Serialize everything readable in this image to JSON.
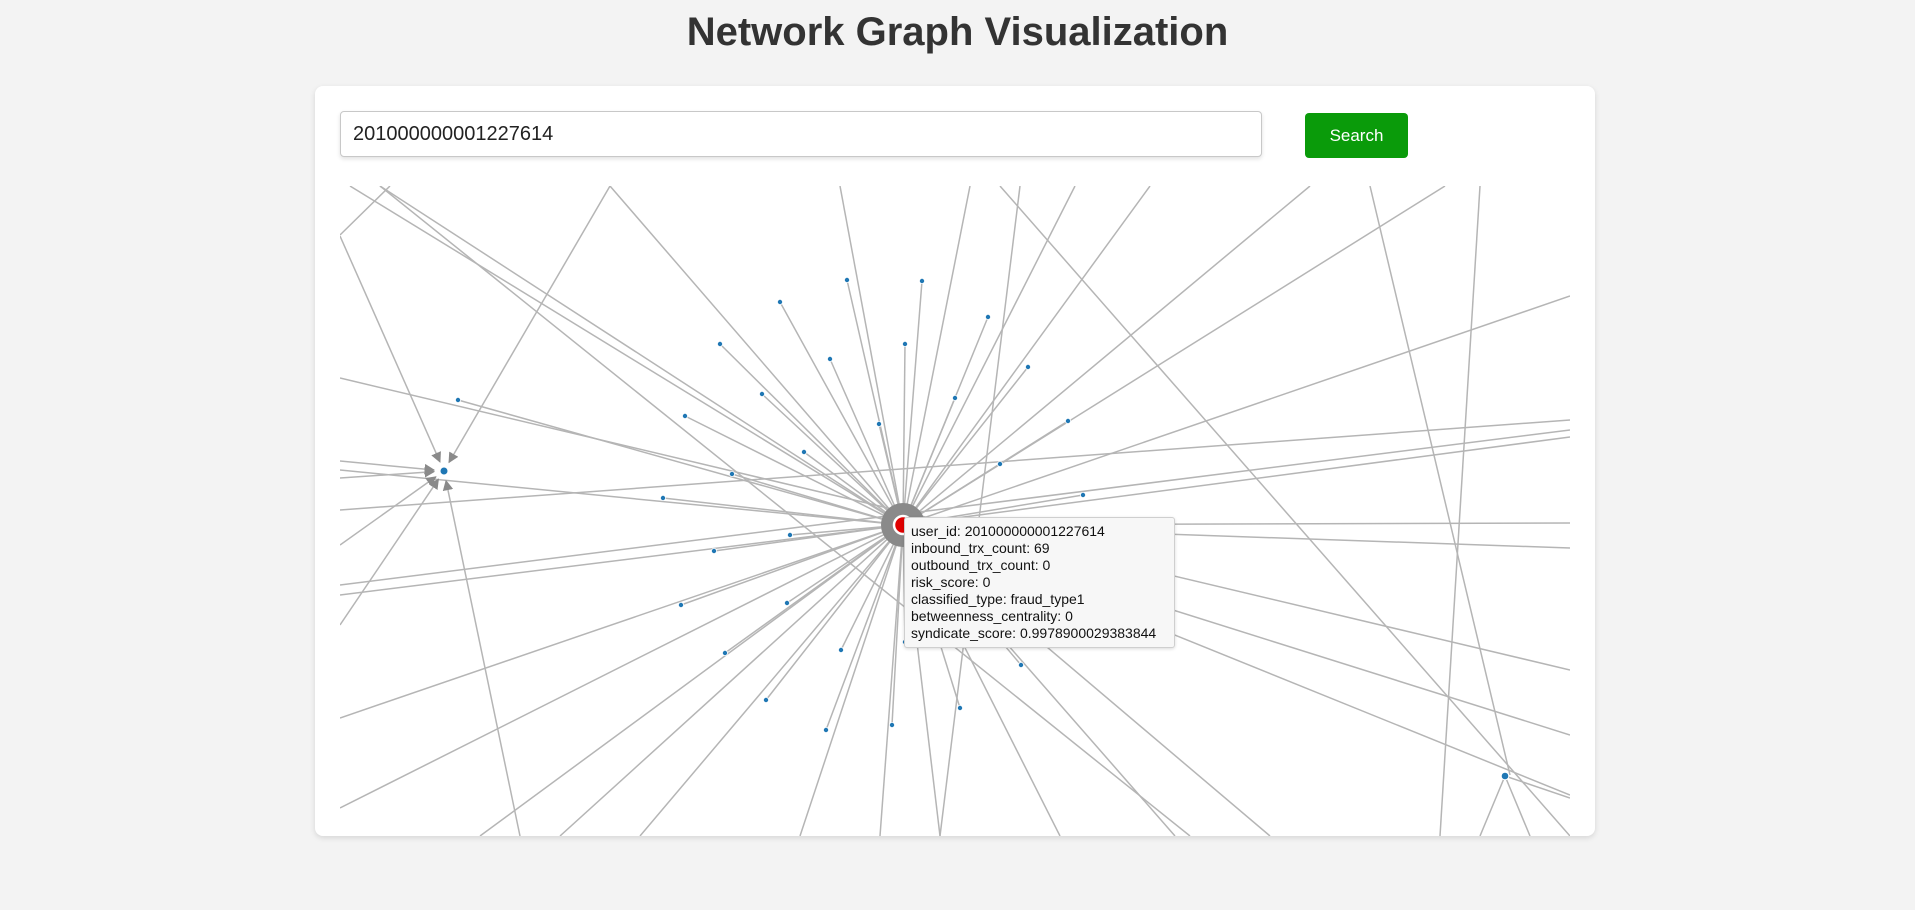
{
  "page": {
    "title": "Network Graph Visualization"
  },
  "search": {
    "value": "201000000001227614",
    "button_label": "Search"
  },
  "tooltip": {
    "rows": [
      {
        "label": "user_id",
        "value": "201000000001227614"
      },
      {
        "label": "inbound_trx_count",
        "value": "69"
      },
      {
        "label": "outbound_trx_count",
        "value": "0"
      },
      {
        "label": "risk_score",
        "value": "0"
      },
      {
        "label": "classified_type",
        "value": "fraud_type1"
      },
      {
        "label": "betweenness_centrality",
        "value": "0"
      },
      {
        "label": "syndicate_score",
        "value": "0.9978900029383844"
      }
    ]
  },
  "graph": {
    "colors": {
      "edge": "#b5b5b5",
      "node": "#1f77b4",
      "highlight_node": "#e00000",
      "highlight_ring": "#8a8a8a",
      "arrow": "#8a8a8a"
    }
  }
}
